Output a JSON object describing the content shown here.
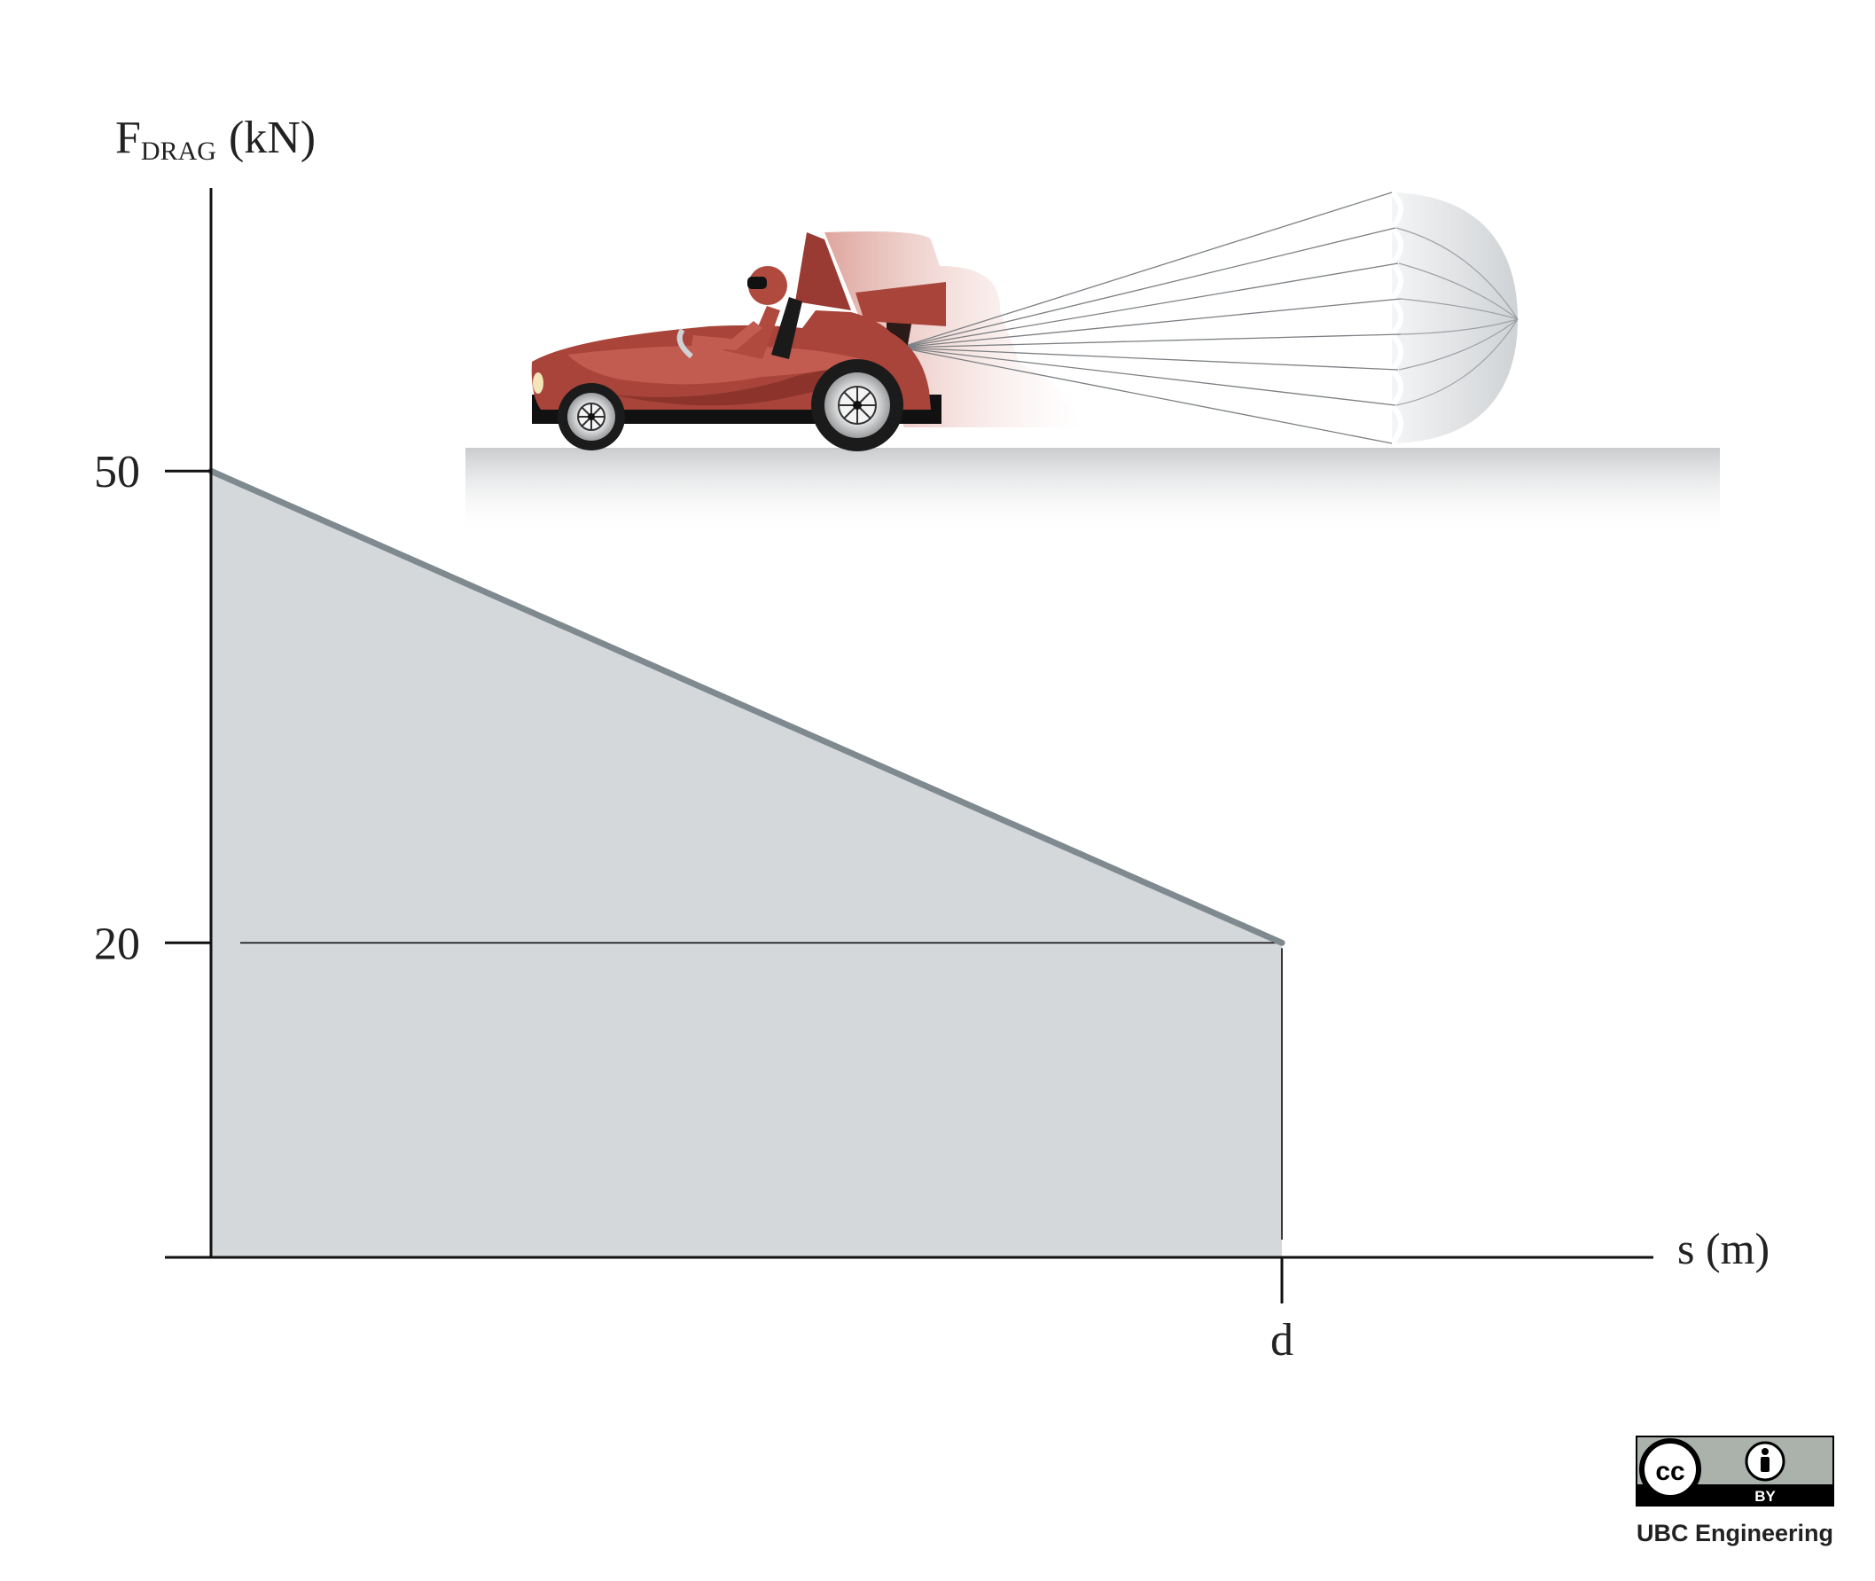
{
  "chart_data": {
    "type": "area",
    "title": "",
    "ylabel": {
      "main": "F",
      "subscript": "DRAG",
      "unit": "(kN)"
    },
    "xlabel": "s (m)",
    "x": [
      "0",
      "d"
    ],
    "y": [
      50,
      20
    ],
    "yticks": [
      "50",
      "20"
    ],
    "xticks": [
      "d"
    ],
    "ylim": [
      0,
      68
    ],
    "grid": false,
    "reference_line": {
      "y": 20,
      "to_x": "d"
    },
    "colors": {
      "fill": "#d5d8db",
      "line": "#7f8a90",
      "axis": "#111111"
    }
  },
  "illustration": {
    "subject": "dragster-car-with-drag-parachute",
    "car_color": "#a8443a",
    "parachute_color": "#e6e8ea"
  },
  "license": {
    "badge": "cc-by-icon",
    "badge_text": "BY",
    "credit": "UBC Engineering"
  }
}
